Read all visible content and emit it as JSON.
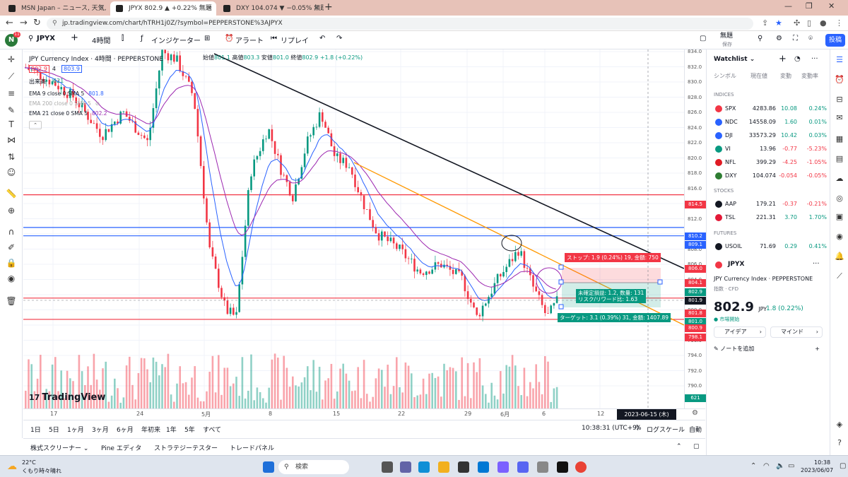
{
  "browser": {
    "tabs": [
      {
        "title": "MSN Japan – ニュース, 天気, メール",
        "close": "×"
      },
      {
        "title": "JPYX 802.9 ▲ +0.22% 無題",
        "close": "×"
      },
      {
        "title": "DXY 104.074 ▼ −0.05% 無題",
        "close": "×"
      }
    ],
    "new_tab": "+",
    "url": "jp.tradingview.com/chart/hTRH1j0Z/?symbol=PEPPERSTONE%3AJPYX"
  },
  "toolbar": {
    "avatar_letter": "N",
    "avatar_badge": "11",
    "symbol": "JPYX",
    "add": "+",
    "interval": "4時間",
    "indicators": "インジケーター",
    "alert": "アラート",
    "replay": "リプレイ",
    "undo": "↶",
    "redo": "↷",
    "layout_name": "無題",
    "layout_sub": "保存",
    "publish": "投稿"
  },
  "legend": {
    "title": "JPY Currency Index · 4時間 · PEPPERSTONE",
    "open_label": "始値",
    "open": "801.1",
    "high_label": "高値",
    "high": "803.3",
    "low_label": "安値",
    "low": "801.0",
    "close_label": "終値",
    "close": "802.9",
    "change": "+1.8 (+0.22%)",
    "sell_price": "802.9",
    "qty": "4",
    "buy_price": "803.9",
    "volume_label": "出来高",
    "volume_value": "621",
    "emas": [
      {
        "label": "EMA 9 close 0 SMA 5",
        "value": "801.8"
      },
      {
        "label": "EMA 200 close 0 SMA 5",
        "value": ""
      },
      {
        "label": "EMA 21 close 0 SMA 5",
        "value": "802.2"
      }
    ],
    "watermark": "TradingView"
  },
  "position_tool": {
    "stop_label": "ストップ: 1.9 (0.24%) 19, 金額: 750",
    "open_pnl_label": "未確定損益: 1.2, 数量: 131",
    "rr_label": "リスク/リワード比: 1.63",
    "target_label": "ターゲット: 3.1 (0.39%) 31, 金額: 1407.89"
  },
  "price_axis": {
    "ticks": [
      "834.0",
      "832.0",
      "830.0",
      "828.0",
      "826.0",
      "824.0",
      "822.0",
      "820.0",
      "818.0",
      "816.0",
      "812.0",
      "808.0",
      "806.0",
      "804.0",
      "800.0",
      "798.0",
      "796.0",
      "794.0",
      "792.0",
      "790.0"
    ],
    "tags": [
      {
        "text": "814.5",
        "color": "#f23645"
      },
      {
        "text": "810.2",
        "color": "#2962ff"
      },
      {
        "text": "809.1",
        "color": "#2962ff"
      },
      {
        "text": "806.0",
        "color": "#f23645"
      },
      {
        "text": "804.1",
        "color": "#f23645"
      },
      {
        "text": "802.9",
        "color": "#089981"
      },
      {
        "text": "801.9",
        "color": "#131722"
      },
      {
        "text": "801.8",
        "color": "#f23645"
      },
      {
        "text": "801.0",
        "color": "#089981"
      },
      {
        "text": "800.9",
        "color": "#f23645"
      },
      {
        "text": "798.1",
        "color": "#f23645"
      },
      {
        "text": "621",
        "color": "#089981"
      }
    ]
  },
  "time_axis": {
    "ticks": [
      "17",
      "24",
      "5月",
      "8",
      "15",
      "22",
      "29",
      "6月",
      "6",
      "12"
    ],
    "crosshair": "2023-06-15 (木)  23:00"
  },
  "range_bar": {
    "ranges": [
      "1日",
      "5日",
      "1ヶ月",
      "3ヶ月",
      "6ヶ月",
      "年初来",
      "1年",
      "5年",
      "すべて"
    ],
    "clock": "10:38:31 (UTC+9)",
    "percent": "%",
    "log": "ログスケール",
    "auto": "自動"
  },
  "bottom_panel": {
    "tabs": [
      "株式スクリーナー",
      "Pine エディタ",
      "ストラテジーテスター",
      "トレードパネル"
    ]
  },
  "watchlist": {
    "title": "Watchlist",
    "headers": {
      "symbol": "シンボル",
      "last": "現在値",
      "change": "変動",
      "pct": "変動率"
    },
    "sections": {
      "indices": "INDICES",
      "stocks": "STOCKS",
      "futures": "FUTURES"
    },
    "indices": [
      {
        "sym": "SPX",
        "last": "4283.86",
        "chg": "10.08",
        "pct": "0.24%",
        "color": "#f23645"
      },
      {
        "sym": "NDC",
        "last": "14558.09",
        "chg": "1.60",
        "pct": "0.01%",
        "color": "#2962ff"
      },
      {
        "sym": "DJI",
        "last": "33573.29",
        "chg": "10.42",
        "pct": "0.03%",
        "color": "#2962ff"
      },
      {
        "sym": "VI",
        "last": "13.96",
        "chg": "-0.77",
        "pct": "-5.23%",
        "color": "#089981"
      },
      {
        "sym": "NFL",
        "last": "399.29",
        "chg": "-4.25",
        "pct": "-1.05%",
        "color": "#e01b24"
      },
      {
        "sym": "DXY",
        "last": "104.074",
        "chg": "-0.054",
        "pct": "-0.05%",
        "color": "#2e7d32"
      }
    ],
    "stocks": [
      {
        "sym": "AAP",
        "last": "179.21",
        "chg": "-0.37",
        "pct": "-0.21%",
        "color": "#131722"
      },
      {
        "sym": "TSL",
        "last": "221.31",
        "chg": "3.70",
        "pct": "1.70%",
        "color": "#e31937"
      }
    ],
    "futures": [
      {
        "sym": "USOIL",
        "last": "71.69",
        "chg": "0.29",
        "pct": "0.41%",
        "color": "#131722"
      }
    ]
  },
  "detail": {
    "symbol": "JPYX",
    "name": "JPY Currency Index · PEPPERSTONE",
    "sub": "指数 · CFD",
    "price": "802.9",
    "currency": "JPY",
    "change": "1.8 (0.22%)",
    "status": "● 市場開始",
    "ideas": "アイデア",
    "minds": "マインド",
    "add_note": "ノートを追加"
  },
  "taskbar": {
    "temp": "22°C",
    "weather": "くもり時々晴れ",
    "search": "検索",
    "time": "10:38",
    "date": "2023/06/07"
  }
}
